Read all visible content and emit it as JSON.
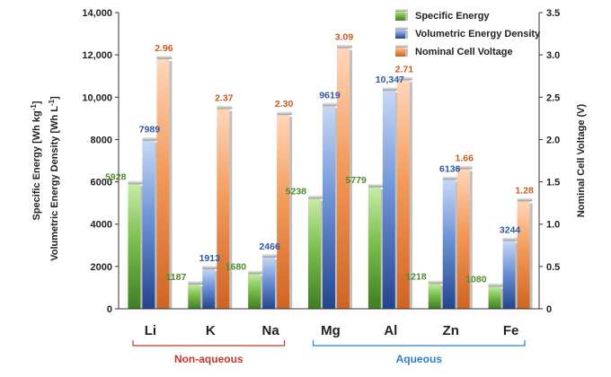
{
  "chart_data": {
    "type": "bar",
    "categories": [
      "Li",
      "K",
      "Na",
      "Mg",
      "Al",
      "Zn",
      "Fe"
    ],
    "series": [
      {
        "name": "Specific Energy",
        "axis": "left",
        "values": [
          5928,
          1187,
          1680,
          5238,
          5779,
          1218,
          1080
        ],
        "labels": [
          "5928",
          "1187",
          "1680",
          "5238",
          "5779",
          "1218",
          "1080"
        ],
        "color": "#4f8a2e"
      },
      {
        "name": "Volumetric Energy Density",
        "axis": "left",
        "values": [
          7989,
          1913,
          2466,
          9619,
          10347,
          6136,
          3244
        ],
        "labels": [
          "7989",
          "1913",
          "2466",
          "9619",
          "10,347",
          "6136",
          "3244"
        ],
        "color": "#2f57a3"
      },
      {
        "name": "Nominal Cell Voltage",
        "axis": "right",
        "values": [
          2.96,
          2.37,
          2.3,
          3.09,
          2.71,
          1.66,
          1.28
        ],
        "labels": [
          "2.96",
          "2.37",
          "2.30",
          "3.09",
          "2.71",
          "1.66",
          "1.28"
        ],
        "color": "#e07a34"
      }
    ],
    "y_left": {
      "label_line1": "Specific Energy [Wh kg",
      "label_line1_sup": "-1",
      "label_line1_end": "]",
      "label_line2": "Volumetric Energy Density [Wh L",
      "label_line2_sup": "-1",
      "label_line2_end": "]",
      "ylim": [
        0,
        14000
      ],
      "ticks": [
        "0",
        "2000",
        "4000",
        "6000",
        "8000",
        "10,000",
        "12,000",
        "14,000"
      ]
    },
    "y_right": {
      "label": "Nominal Cell Voltage (V)",
      "ylim": [
        0,
        3.5
      ],
      "ticks": [
        "0",
        "0.5",
        "1.0",
        "1.5",
        "2.0",
        "2.5",
        "3.0",
        "3.5"
      ]
    },
    "groups": [
      {
        "label": "Non-aqueous",
        "categories": [
          "Li",
          "K",
          "Na"
        ],
        "color": "#c0392b"
      },
      {
        "label": "Aqueous",
        "categories": [
          "Mg",
          "Al",
          "Zn",
          "Fe"
        ],
        "color": "#2e7fc8"
      }
    ],
    "legend_position": "top-right",
    "grid": false
  }
}
